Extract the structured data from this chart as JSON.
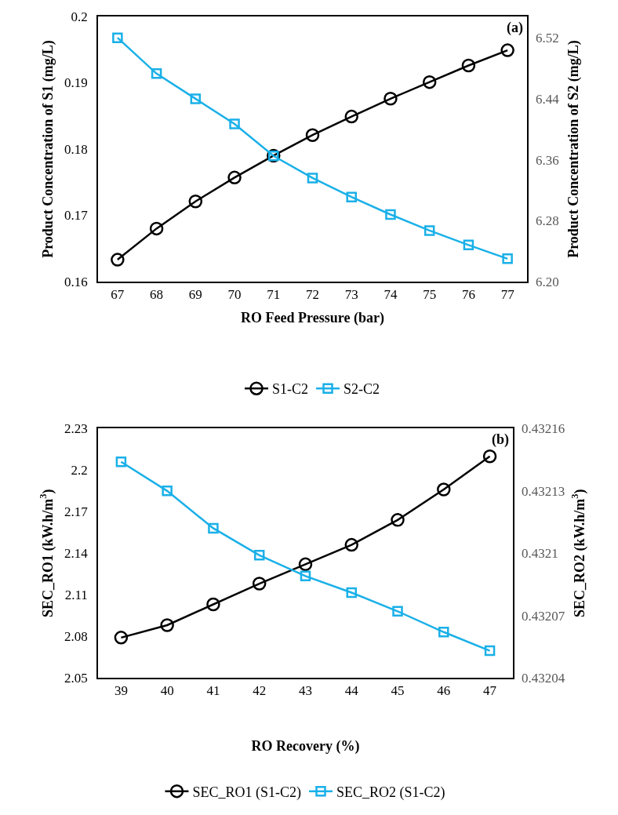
{
  "chart_data": [
    {
      "type": "line",
      "xlabel": "RO Feed Pressure (bar)",
      "ylabel": "Product Concentration of S1 (mg/L)",
      "y2label": "Product Concentration of S2 (mg/L)",
      "annotations": [
        "(a)"
      ],
      "x": [
        67,
        68,
        69,
        70,
        71,
        72,
        73,
        74,
        75,
        76,
        77
      ],
      "xlim": [
        66.5,
        77.5
      ],
      "xticks": [
        67,
        68,
        69,
        70,
        71,
        72,
        73,
        74,
        75,
        76,
        77
      ],
      "ylim": [
        0.16,
        0.2
      ],
      "yticks": [
        0.16,
        0.17,
        0.18,
        0.19,
        0.2
      ],
      "y2lim": [
        6.2,
        6.548
      ],
      "y2ticks": [
        {
          "value": 6.2,
          "label": "6.20"
        },
        6.28,
        6.36,
        6.44,
        6.52
      ],
      "legend": "bottom",
      "line_style": "solid",
      "series": [
        {
          "name": "S1-C2",
          "color": "#000000",
          "marker": "circle",
          "values": [
            0.1633,
            0.168,
            0.1721,
            0.1757,
            0.179,
            0.1821,
            0.1849,
            0.1876,
            0.1901,
            0.1926,
            0.1949
          ]
        },
        {
          "name": "S2-C2",
          "color": "#1ab0e8",
          "marker": "square",
          "axis": "y2",
          "values": [
            6.52,
            6.473,
            6.44,
            6.407,
            6.365,
            6.336,
            6.311,
            6.288,
            6.267,
            6.248,
            6.23
          ]
        }
      ]
    },
    {
      "type": "line",
      "xlabel": "RO Recovery (%)",
      "ylabel": "SEC_RO1 (kW.h/m$^{3}$)",
      "y2label": "SEC_RO2 (kW.h/m$^{3}$)",
      "annotations": [
        "(b)"
      ],
      "x": [
        39,
        40,
        41,
        42,
        43,
        44,
        45,
        46,
        47
      ],
      "xlim": [
        38.5,
        47.5
      ],
      "xticks": [
        39,
        40,
        41,
        42,
        43,
        44,
        45,
        46,
        47
      ],
      "ylim": [
        2.05,
        2.23
      ],
      "yticks": [
        2.05,
        2.08,
        2.11,
        2.14,
        2.17,
        2.2,
        2.23
      ],
      "y2lim": [
        0.43204,
        0.43216
      ],
      "y2ticks": [
        0.43204,
        0.43207,
        0.4321,
        0.43213,
        0.43216
      ],
      "legend": "bottom",
      "line_style": "solid",
      "series": [
        {
          "name": "SEC_RO1 (S1-C2)",
          "color": "#000000",
          "marker": "circle",
          "values": [
            2.079,
            2.088,
            2.103,
            2.118,
            2.132,
            2.146,
            2.164,
            2.186,
            2.21
          ]
        },
        {
          "name": "SEC_RO2 (S1-C2)",
          "color": "#1ab0e8",
          "marker": "square",
          "axis": "y2",
          "values": [
            0.432144,
            0.43213,
            0.432112,
            0.432099,
            0.432089,
            0.432081,
            0.432072,
            0.432062,
            0.432053
          ]
        }
      ]
    }
  ]
}
